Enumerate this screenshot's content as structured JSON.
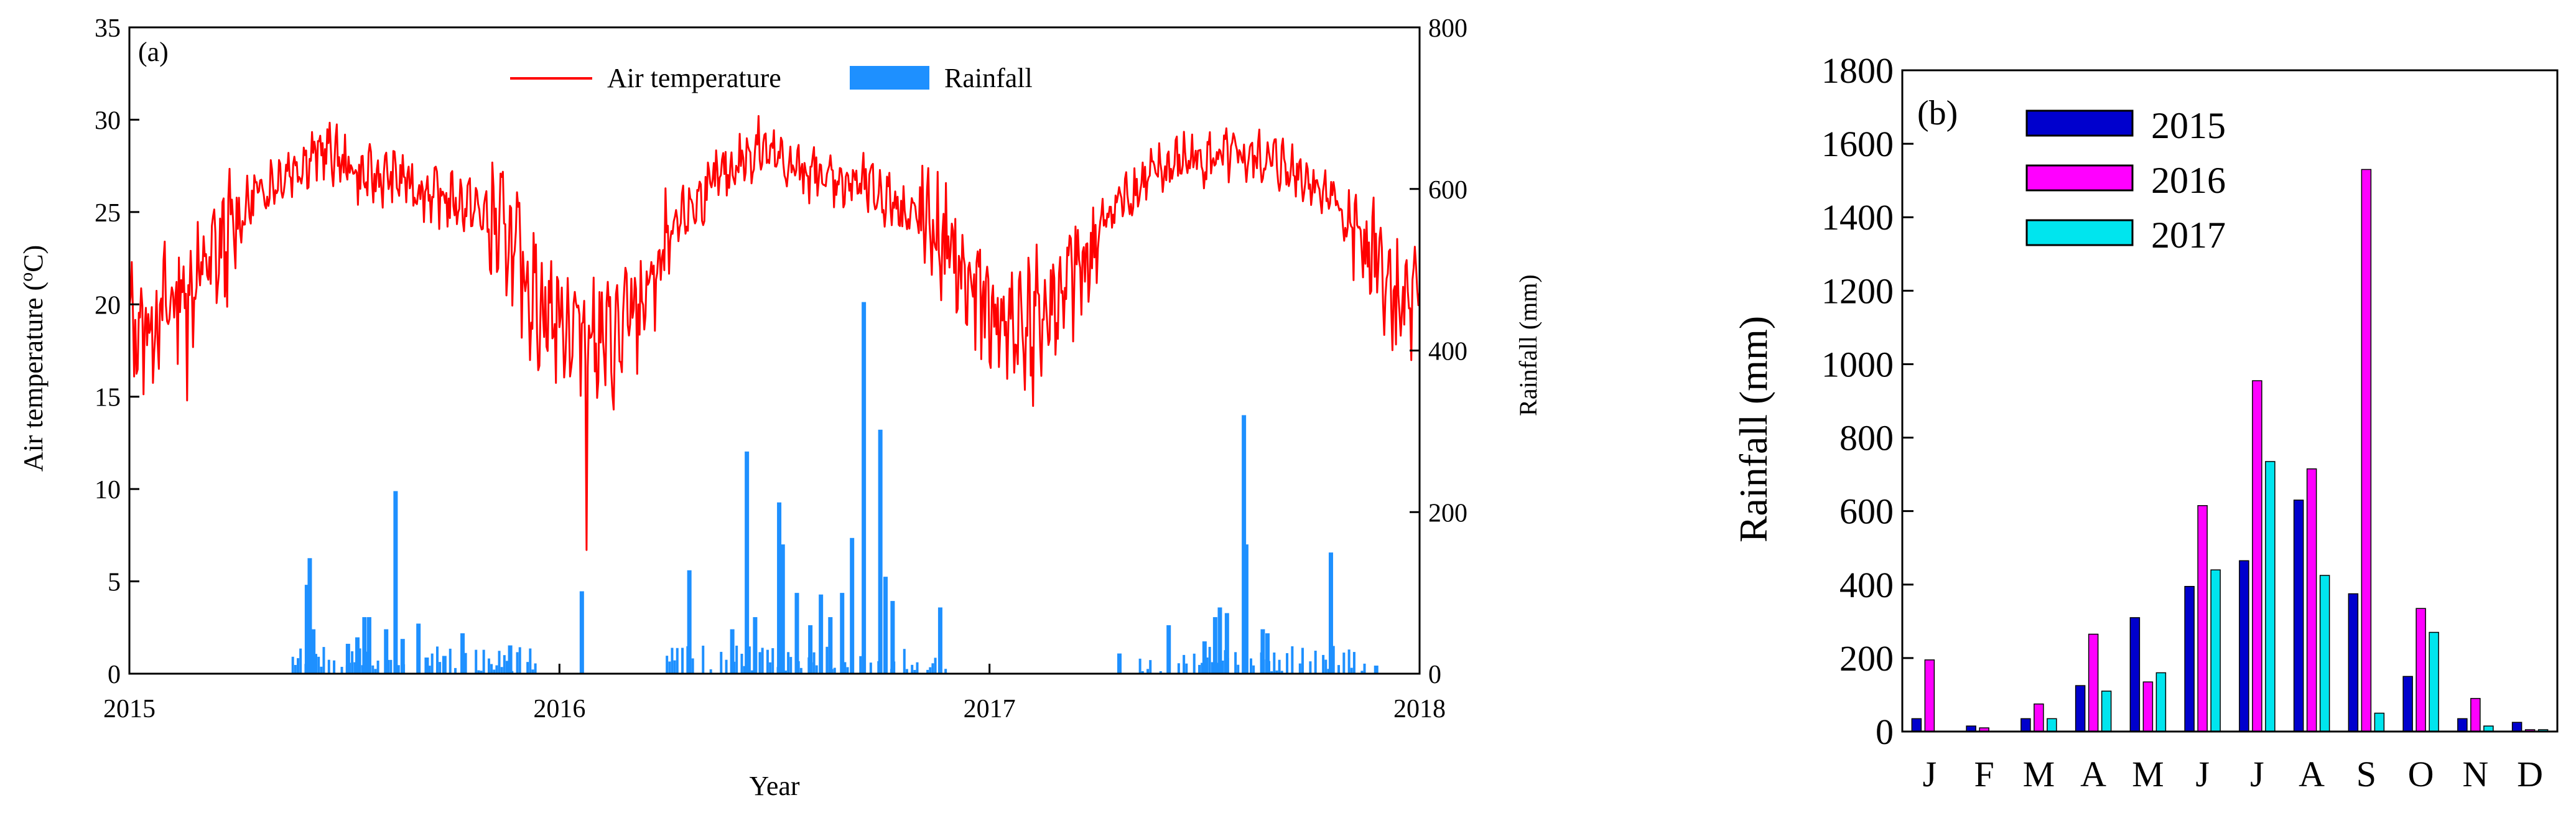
{
  "figure": {
    "colors": {
      "axis": "#000000",
      "temperature": "#ff0000",
      "rainfall_a": "#1e90ff",
      "series_2015": "#0000cd",
      "series_2016": "#ff00ff",
      "series_2017": "#00e5ee",
      "bar_edge": "#000000"
    }
  },
  "chart_data": [
    {
      "type": "line",
      "panel_label": "(a)",
      "xlabel": "Year",
      "ylabel_left": "Air temperature (°C)",
      "ylabel_left_parts": [
        "Air temperature (",
        "o",
        "C)"
      ],
      "ylabel_right": "Rainfall (mm)",
      "x_range": [
        2015,
        2018
      ],
      "x_ticks": [
        "2015",
        "2016",
        "2017",
        "2018"
      ],
      "ylim_left": [
        0,
        35
      ],
      "y_ticks_left": [
        "0",
        "5",
        "10",
        "15",
        "20",
        "25",
        "30",
        "35"
      ],
      "ylim_right": [
        0,
        800
      ],
      "y_ticks_right": [
        "0",
        "200",
        "400",
        "600",
        "800"
      ],
      "legend": [
        {
          "label": "Air temperature",
          "kind": "line"
        },
        {
          "label": "Rainfall",
          "kind": "bar"
        }
      ],
      "series": [
        {
          "name": "Air temperature",
          "kind": "line",
          "unit": "°C",
          "approx_monthly_mean": {
            "2015": [
              19,
              21,
              23,
              26,
              27.5,
              28.5,
              27,
              27,
              26,
              25.5,
              24,
              20
            ],
            "2016": [
              19,
              18,
              21,
              25,
              27,
              28.5,
              27.5,
              27,
              26.5,
              25.5,
              24,
              21
            ],
            "2017": [
              19,
              19.5,
              22,
              25.5,
              27,
              28,
              28,
              28,
              27.5,
              26,
              23,
              20
            ]
          },
          "extremes": [
            {
              "date": "2016-01-24",
              "value": 6.7,
              "note": "minimum"
            },
            {
              "date": "2016-06-18",
              "value": 30.2,
              "note": "maximum"
            },
            {
              "date": "2017-02-08",
              "value": 14.5
            },
            {
              "date": "2015-02-20",
              "value": 14.8
            }
          ]
        },
        {
          "name": "Rainfall",
          "kind": "bar",
          "unit": "mm",
          "events": [
            [
              "2015-05-30",
              110
            ],
            [
              "2015-06-02",
              143
            ],
            [
              "2015-06-05",
              55
            ],
            [
              "2015-07-04",
              37
            ],
            [
              "2015-07-12",
              45
            ],
            [
              "2015-07-18",
              70
            ],
            [
              "2015-07-22",
              70
            ],
            [
              "2015-08-06",
              55
            ],
            [
              "2015-08-14",
              226
            ],
            [
              "2015-08-20",
              43
            ],
            [
              "2015-09-03",
              62
            ],
            [
              "2015-09-10",
              20
            ],
            [
              "2015-09-25",
              22
            ],
            [
              "2015-10-10",
              50
            ],
            [
              "2015-11-20",
              35
            ],
            [
              "2016-01-20",
              102
            ],
            [
              "2016-04-20",
              128
            ],
            [
              "2016-05-26",
              55
            ],
            [
              "2016-06-08",
              275
            ],
            [
              "2016-06-15",
              70
            ],
            [
              "2016-07-05",
              212
            ],
            [
              "2016-07-08",
              160
            ],
            [
              "2016-07-20",
              100
            ],
            [
              "2016-08-01",
              60
            ],
            [
              "2016-08-10",
              98
            ],
            [
              "2016-08-18",
              70
            ],
            [
              "2016-08-28",
              100
            ],
            [
              "2016-09-06",
              168
            ],
            [
              "2016-09-16",
              460
            ],
            [
              "2016-09-30",
              302
            ],
            [
              "2016-10-04",
              120
            ],
            [
              "2016-10-10",
              90
            ],
            [
              "2016-11-20",
              82
            ],
            [
              "2017-04-20",
              25
            ],
            [
              "2017-06-01",
              60
            ],
            [
              "2017-07-01",
              40
            ],
            [
              "2017-07-10",
              70
            ],
            [
              "2017-07-14",
              82
            ],
            [
              "2017-07-20",
              75
            ],
            [
              "2017-08-04",
              320
            ],
            [
              "2017-08-06",
              160
            ],
            [
              "2017-08-20",
              55
            ],
            [
              "2017-08-24",
              50
            ],
            [
              "2017-10-17",
              150
            ],
            [
              "2017-11-25",
              10
            ]
          ]
        }
      ]
    },
    {
      "type": "bar",
      "panel_label": "(b)",
      "ylabel": "Rainfall (mm)",
      "xlabel": "",
      "ylim": [
        0,
        1800
      ],
      "y_ticks": [
        "0",
        "200",
        "400",
        "600",
        "800",
        "1000",
        "1200",
        "1400",
        "1600",
        "1800"
      ],
      "categories": [
        "J",
        "F",
        "M",
        "A",
        "M",
        "J",
        "J",
        "A",
        "S",
        "O",
        "N",
        "D"
      ],
      "series": [
        {
          "name": "2015",
          "values": [
            35,
            15,
            35,
            125,
            310,
            395,
            465,
            630,
            375,
            150,
            35,
            25
          ]
        },
        {
          "name": "2016",
          "values": [
            195,
            10,
            75,
            265,
            135,
            615,
            955,
            715,
            1530,
            335,
            90,
            5
          ]
        },
        {
          "name": "2017",
          "values": [
            0,
            0,
            35,
            110,
            160,
            440,
            735,
            425,
            50,
            270,
            15,
            5
          ]
        }
      ]
    }
  ]
}
